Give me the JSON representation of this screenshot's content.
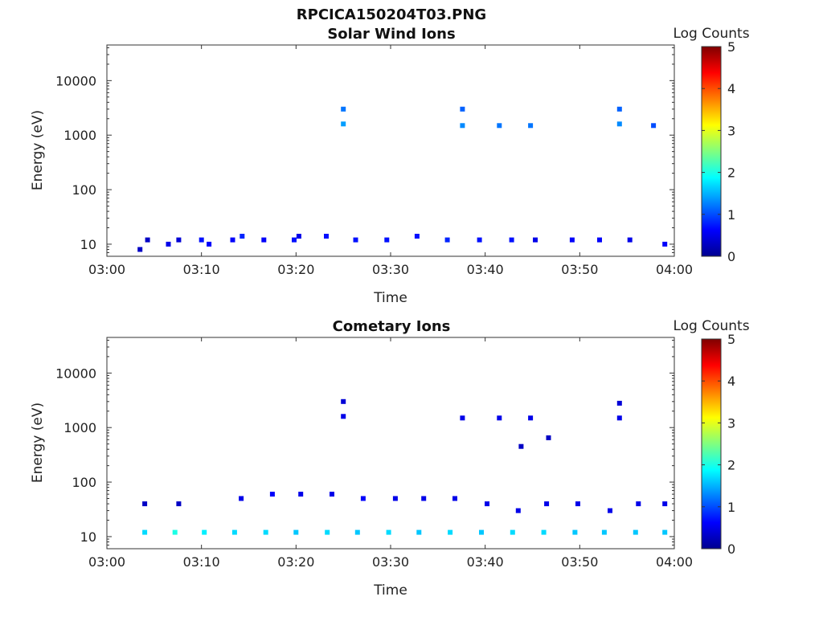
{
  "figure": {
    "title": "RPCICA150204T03.PNG"
  },
  "colorbar": {
    "label": "Log Counts",
    "ticks": [
      "0",
      "1",
      "2",
      "3",
      "4",
      "5"
    ],
    "range": [
      0,
      5
    ],
    "colormap": "jet"
  },
  "chart_data": [
    {
      "type": "heatmap",
      "title": "Solar Wind Ions",
      "xlabel": "Time",
      "ylabel": "Energy (eV)",
      "x_range": [
        "03:00",
        "04:00"
      ],
      "x_ticks": [
        "03:00",
        "03:10",
        "03:20",
        "03:30",
        "03:40",
        "03:50",
        "04:00"
      ],
      "y_scale": "log",
      "y_range": [
        6,
        45000
      ],
      "y_ticks": [
        "10",
        "100",
        "1000",
        "10000"
      ],
      "cells": [
        {
          "t": 3.5,
          "e": 8,
          "c": 0.3
        },
        {
          "t": 4.3,
          "e": 12,
          "c": 0.3
        },
        {
          "t": 6.5,
          "e": 10,
          "c": 0.5
        },
        {
          "t": 7.6,
          "e": 12,
          "c": 0.4
        },
        {
          "t": 10.0,
          "e": 12,
          "c": 0.7
        },
        {
          "t": 10.8,
          "e": 10,
          "c": 0.6
        },
        {
          "t": 13.3,
          "e": 12,
          "c": 0.6
        },
        {
          "t": 14.3,
          "e": 14,
          "c": 0.8
        },
        {
          "t": 16.6,
          "e": 12,
          "c": 0.6
        },
        {
          "t": 19.8,
          "e": 12,
          "c": 0.7
        },
        {
          "t": 20.3,
          "e": 14,
          "c": 0.5
        },
        {
          "t": 23.2,
          "e": 14,
          "c": 0.7
        },
        {
          "t": 26.3,
          "e": 12,
          "c": 0.7
        },
        {
          "t": 29.6,
          "e": 12,
          "c": 0.7
        },
        {
          "t": 32.8,
          "e": 14,
          "c": 0.7
        },
        {
          "t": 36.0,
          "e": 12,
          "c": 0.8
        },
        {
          "t": 39.4,
          "e": 12,
          "c": 0.7
        },
        {
          "t": 42.8,
          "e": 12,
          "c": 0.7
        },
        {
          "t": 45.3,
          "e": 12,
          "c": 0.5
        },
        {
          "t": 49.2,
          "e": 12,
          "c": 0.6
        },
        {
          "t": 52.1,
          "e": 12,
          "c": 0.6
        },
        {
          "t": 55.3,
          "e": 12,
          "c": 0.5
        },
        {
          "t": 59.0,
          "e": 10,
          "c": 0.6
        },
        {
          "t": 25.0,
          "e": 3000,
          "c": 1.2
        },
        {
          "t": 25.0,
          "e": 1600,
          "c": 1.4
        },
        {
          "t": 37.6,
          "e": 3000,
          "c": 1.1
        },
        {
          "t": 37.6,
          "e": 1500,
          "c": 1.3
        },
        {
          "t": 41.5,
          "e": 1500,
          "c": 1.2
        },
        {
          "t": 44.8,
          "e": 1500,
          "c": 1.2
        },
        {
          "t": 54.2,
          "e": 3000,
          "c": 1.1
        },
        {
          "t": 54.2,
          "e": 1600,
          "c": 1.3
        },
        {
          "t": 57.8,
          "e": 1500,
          "c": 1.0
        }
      ]
    },
    {
      "type": "heatmap",
      "title": "Cometary Ions",
      "xlabel": "Time",
      "ylabel": "Energy (eV)",
      "x_range": [
        "03:00",
        "04:00"
      ],
      "x_ticks": [
        "03:00",
        "03:10",
        "03:20",
        "03:30",
        "03:40",
        "03:50",
        "04:00"
      ],
      "y_scale": "log",
      "y_range": [
        6,
        45000
      ],
      "y_ticks": [
        "10",
        "100",
        "1000",
        "10000"
      ],
      "cells": [
        {
          "t": 4.0,
          "e": 12,
          "c": 1.7
        },
        {
          "t": 4.0,
          "e": 40,
          "c": 0.3
        },
        {
          "t": 7.2,
          "e": 12,
          "c": 2.0
        },
        {
          "t": 7.6,
          "e": 40,
          "c": 0.3
        },
        {
          "t": 10.3,
          "e": 12,
          "c": 1.8
        },
        {
          "t": 13.5,
          "e": 12,
          "c": 1.7
        },
        {
          "t": 14.2,
          "e": 50,
          "c": 0.5
        },
        {
          "t": 16.8,
          "e": 12,
          "c": 1.7
        },
        {
          "t": 17.5,
          "e": 60,
          "c": 0.6
        },
        {
          "t": 20.0,
          "e": 12,
          "c": 1.6
        },
        {
          "t": 20.5,
          "e": 60,
          "c": 0.5
        },
        {
          "t": 23.3,
          "e": 12,
          "c": 1.7
        },
        {
          "t": 23.8,
          "e": 60,
          "c": 0.5
        },
        {
          "t": 26.5,
          "e": 12,
          "c": 1.6
        },
        {
          "t": 27.1,
          "e": 50,
          "c": 0.6
        },
        {
          "t": 29.8,
          "e": 12,
          "c": 1.7
        },
        {
          "t": 30.5,
          "e": 50,
          "c": 0.5
        },
        {
          "t": 33.0,
          "e": 12,
          "c": 1.6
        },
        {
          "t": 33.5,
          "e": 50,
          "c": 0.5
        },
        {
          "t": 36.3,
          "e": 12,
          "c": 1.7
        },
        {
          "t": 36.8,
          "e": 50,
          "c": 0.5
        },
        {
          "t": 39.6,
          "e": 12,
          "c": 1.6
        },
        {
          "t": 40.2,
          "e": 40,
          "c": 0.5
        },
        {
          "t": 42.9,
          "e": 12,
          "c": 1.7
        },
        {
          "t": 43.5,
          "e": 30,
          "c": 0.5
        },
        {
          "t": 46.2,
          "e": 12,
          "c": 1.7
        },
        {
          "t": 46.5,
          "e": 40,
          "c": 0.5
        },
        {
          "t": 49.5,
          "e": 12,
          "c": 1.6
        },
        {
          "t": 49.8,
          "e": 40,
          "c": 0.5
        },
        {
          "t": 52.6,
          "e": 12,
          "c": 1.6
        },
        {
          "t": 53.2,
          "e": 30,
          "c": 0.5
        },
        {
          "t": 55.9,
          "e": 12,
          "c": 1.6
        },
        {
          "t": 56.2,
          "e": 40,
          "c": 0.5
        },
        {
          "t": 59.0,
          "e": 12,
          "c": 1.6
        },
        {
          "t": 59.0,
          "e": 40,
          "c": 0.5
        },
        {
          "t": 25.0,
          "e": 3000,
          "c": 0.4
        },
        {
          "t": 25.0,
          "e": 1600,
          "c": 0.5
        },
        {
          "t": 37.6,
          "e": 1500,
          "c": 0.5
        },
        {
          "t": 41.5,
          "e": 1500,
          "c": 0.5
        },
        {
          "t": 44.8,
          "e": 1500,
          "c": 0.5
        },
        {
          "t": 54.2,
          "e": 2800,
          "c": 0.4
        },
        {
          "t": 54.2,
          "e": 1500,
          "c": 0.5
        },
        {
          "t": 43.8,
          "e": 450,
          "c": 0.3
        },
        {
          "t": 46.7,
          "e": 650,
          "c": 0.3
        }
      ]
    }
  ]
}
